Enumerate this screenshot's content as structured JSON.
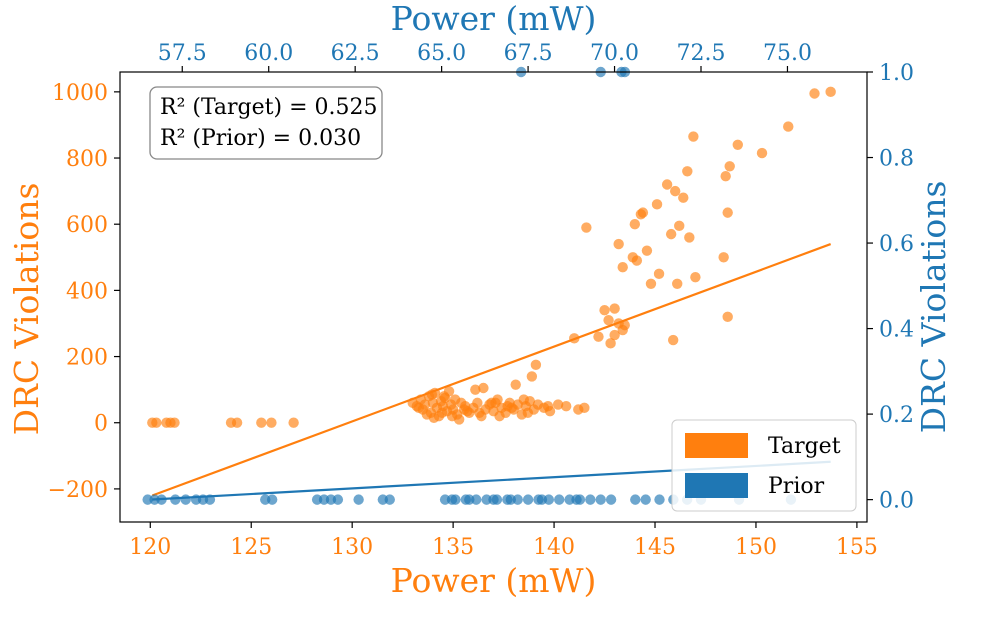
{
  "chart_data": {
    "type": "scatter",
    "bottom_axis": {
      "label": "Power (mW)",
      "range": [
        118.5,
        155.5
      ],
      "ticks": [
        120,
        125,
        130,
        135,
        140,
        145,
        150,
        155
      ],
      "color": "#ff7f0e"
    },
    "top_axis": {
      "label": "Power (mW)",
      "range": [
        55.7,
        77.3
      ],
      "ticks": [
        "57.5",
        "60.0",
        "62.5",
        "65.0",
        "67.5",
        "70.0",
        "72.5",
        "75.0"
      ],
      "color": "#1f77b4"
    },
    "left_axis": {
      "label": "DRC Violations",
      "range": [
        -300,
        1060
      ],
      "ticks": [
        "1000",
        "800",
        "600",
        "400",
        "200",
        "0",
        "−200"
      ],
      "tick_values": [
        1000,
        800,
        600,
        400,
        200,
        0,
        -200
      ],
      "color": "#ff7f0e"
    },
    "right_axis": {
      "label": "DRC Violations",
      "range": [
        -0.0523,
        1.0
      ],
      "ticks": [
        "1.0",
        "0.8",
        "0.6",
        "0.4",
        "0.2",
        "0.0"
      ],
      "tick_values": [
        1.0,
        0.8,
        0.6,
        0.4,
        0.2,
        0.0
      ],
      "color": "#1f77b4"
    },
    "annotation": [
      "R² (Target) = 0.525",
      "R² (Prior) = 0.030"
    ],
    "legend": {
      "position": "bottom-right",
      "entries": [
        {
          "name": "Target",
          "color": "#ff7f0e"
        },
        {
          "name": "Prior",
          "color": "#1f77b4"
        }
      ]
    },
    "series": [
      {
        "name": "Target",
        "axes": "bottom-left",
        "color": "#ff7f0e",
        "points": [
          [
            120.1,
            0
          ],
          [
            120.3,
            0
          ],
          [
            120.8,
            0
          ],
          [
            121.0,
            0
          ],
          [
            121.2,
            0
          ],
          [
            124.0,
            0
          ],
          [
            124.3,
            0
          ],
          [
            125.5,
            0
          ],
          [
            126.0,
            0
          ],
          [
            127.1,
            0
          ],
          [
            133.0,
            60
          ],
          [
            133.2,
            50
          ],
          [
            133.4,
            70
          ],
          [
            133.5,
            40
          ],
          [
            133.6,
            55
          ],
          [
            133.8,
            80
          ],
          [
            133.9,
            30
          ],
          [
            134.0,
            60
          ],
          [
            134.1,
            90
          ],
          [
            134.2,
            45
          ],
          [
            134.3,
            20
          ],
          [
            134.4,
            65
          ],
          [
            134.5,
            50
          ],
          [
            134.6,
            75
          ],
          [
            134.7,
            35
          ],
          [
            134.8,
            95
          ],
          [
            134.9,
            55
          ],
          [
            135.0,
            40
          ],
          [
            135.1,
            70
          ],
          [
            135.2,
            25
          ],
          [
            135.4,
            60
          ],
          [
            135.6,
            50
          ],
          [
            135.8,
            30
          ],
          [
            136.0,
            45
          ],
          [
            136.2,
            60
          ],
          [
            136.4,
            20
          ],
          [
            136.6,
            40
          ],
          [
            136.8,
            55
          ],
          [
            137.0,
            35
          ],
          [
            137.2,
            70
          ],
          [
            137.4,
            45
          ],
          [
            137.6,
            30
          ],
          [
            137.8,
            60
          ],
          [
            138.0,
            40
          ],
          [
            138.2,
            55
          ],
          [
            138.4,
            25
          ],
          [
            138.6,
            50
          ],
          [
            138.8,
            65
          ],
          [
            139.0,
            40
          ],
          [
            139.2,
            55
          ],
          [
            139.5,
            45
          ],
          [
            139.8,
            35
          ],
          [
            140.2,
            55
          ],
          [
            140.6,
            50
          ],
          [
            141.2,
            40
          ],
          [
            141.5,
            45
          ],
          [
            133.7,
            25
          ],
          [
            134.05,
            15
          ],
          [
            134.55,
            80
          ],
          [
            135.3,
            10
          ],
          [
            135.7,
            35
          ],
          [
            136.1,
            100
          ],
          [
            136.5,
            105
          ],
          [
            136.9,
            60
          ],
          [
            137.3,
            20
          ],
          [
            137.7,
            50
          ],
          [
            138.1,
            115
          ],
          [
            138.5,
            70
          ],
          [
            138.9,
            140
          ],
          [
            139.1,
            175
          ],
          [
            133.3,
            45
          ],
          [
            133.95,
            85
          ],
          [
            134.45,
            30
          ],
          [
            134.95,
            20
          ],
          [
            135.55,
            40
          ],
          [
            136.3,
            30
          ],
          [
            137.1,
            60
          ],
          [
            137.9,
            45
          ],
          [
            138.7,
            30
          ],
          [
            139.7,
            50
          ],
          [
            141.0,
            255
          ],
          [
            142.2,
            260
          ],
          [
            142.5,
            340
          ],
          [
            142.7,
            310
          ],
          [
            143.0,
            345
          ],
          [
            143.0,
            265
          ],
          [
            143.2,
            300
          ],
          [
            143.5,
            295
          ],
          [
            142.8,
            240
          ],
          [
            143.4,
            280
          ],
          [
            141.6,
            590
          ],
          [
            143.2,
            540
          ],
          [
            143.4,
            470
          ],
          [
            143.9,
            500
          ],
          [
            144.0,
            600
          ],
          [
            144.1,
            490
          ],
          [
            144.3,
            630
          ],
          [
            144.4,
            635
          ],
          [
            144.6,
            520
          ],
          [
            144.8,
            420
          ],
          [
            145.1,
            660
          ],
          [
            145.2,
            450
          ],
          [
            145.6,
            720
          ],
          [
            145.8,
            570
          ],
          [
            145.9,
            250
          ],
          [
            146.0,
            700
          ],
          [
            146.2,
            595
          ],
          [
            146.1,
            420
          ],
          [
            146.4,
            680
          ],
          [
            146.6,
            760
          ],
          [
            146.7,
            560
          ],
          [
            147.0,
            440
          ],
          [
            146.9,
            865
          ],
          [
            148.4,
            500
          ],
          [
            148.5,
            745
          ],
          [
            148.6,
            635
          ],
          [
            148.7,
            775
          ],
          [
            148.6,
            320
          ],
          [
            149.1,
            840
          ],
          [
            150.3,
            815
          ],
          [
            151.6,
            895
          ],
          [
            152.9,
            995
          ],
          [
            153.7,
            1000
          ]
        ]
      },
      {
        "name": "Prior",
        "axes": "top-right",
        "color": "#1f77b4",
        "points": [
          [
            56.5,
            0
          ],
          [
            56.7,
            0
          ],
          [
            56.9,
            0
          ],
          [
            57.3,
            0
          ],
          [
            57.6,
            0
          ],
          [
            57.9,
            0
          ],
          [
            58.1,
            0
          ],
          [
            58.3,
            0
          ],
          [
            59.9,
            0
          ],
          [
            60.1,
            0
          ],
          [
            61.4,
            0
          ],
          [
            61.6,
            0
          ],
          [
            61.8,
            0
          ],
          [
            62.0,
            0
          ],
          [
            62.6,
            0
          ],
          [
            63.3,
            0
          ],
          [
            63.5,
            0
          ],
          [
            65.1,
            0
          ],
          [
            65.4,
            0
          ],
          [
            65.7,
            0
          ],
          [
            66.0,
            0
          ],
          [
            66.3,
            0
          ],
          [
            66.6,
            0
          ],
          [
            66.9,
            0
          ],
          [
            67.2,
            0
          ],
          [
            67.5,
            0
          ],
          [
            67.8,
            0
          ],
          [
            68.1,
            0
          ],
          [
            68.4,
            0
          ],
          [
            68.7,
            0
          ],
          [
            69.0,
            0
          ],
          [
            69.3,
            0
          ],
          [
            69.6,
            0
          ],
          [
            69.9,
            0
          ],
          [
            65.3,
            0
          ],
          [
            65.8,
            0
          ],
          [
            66.5,
            0
          ],
          [
            67.0,
            0
          ],
          [
            67.9,
            0
          ],
          [
            68.9,
            0
          ],
          [
            70.6,
            0
          ],
          [
            70.9,
            0
          ],
          [
            71.3,
            0
          ],
          [
            71.7,
            0
          ],
          [
            72.1,
            0
          ],
          [
            72.5,
            0
          ],
          [
            73.6,
            0
          ],
          [
            75.1,
            0
          ],
          [
            67.3,
            1.0
          ],
          [
            69.6,
            1.0
          ],
          [
            70.2,
            1.0
          ],
          [
            70.3,
            1.0
          ]
        ]
      }
    ],
    "fits": [
      {
        "name": "Target",
        "axes": "bottom-left",
        "color": "#ff7f0e",
        "x": [
          120.1,
          153.7
        ],
        "y": [
          -220,
          540
        ]
      },
      {
        "name": "Prior",
        "axes": "bottom-left",
        "color": "#1f77b4",
        "x": [
          120.1,
          153.7
        ],
        "y": [
          -232,
          -118
        ]
      }
    ]
  }
}
